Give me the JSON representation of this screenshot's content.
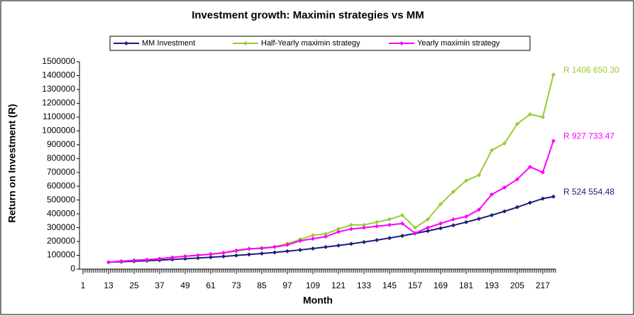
{
  "chart_data": {
    "type": "line",
    "title": "Investment growth: Maximin strategies vs MM",
    "xlabel": "Month",
    "ylabel": "Return on Investment (R)",
    "x": [
      13,
      19,
      25,
      31,
      37,
      43,
      49,
      55,
      61,
      67,
      73,
      79,
      85,
      91,
      97,
      103,
      109,
      115,
      121,
      127,
      133,
      139,
      145,
      151,
      157,
      163,
      169,
      175,
      181,
      187,
      193,
      199,
      205,
      211,
      217,
      222
    ],
    "series": [
      {
        "name": "MM Investment",
        "color": "#1a1f7a",
        "values": [
          50000,
          53000,
          57000,
          61000,
          65000,
          70000,
          75000,
          80000,
          86000,
          92000,
          99000,
          106000,
          113000,
          121000,
          130000,
          139000,
          149000,
          160000,
          171000,
          183000,
          196000,
          210000,
          225000,
          241000,
          258000,
          276000,
          296000,
          317000,
          340000,
          364000,
          390000,
          418000,
          448000,
          480000,
          510000,
          524554.48
        ]
      },
      {
        "name": "Half-Yearly maximin strategy",
        "color": "#99cc33",
        "values": [
          50000,
          57000,
          65000,
          68000,
          75000,
          85000,
          93000,
          100000,
          110000,
          118000,
          130000,
          145000,
          155000,
          162000,
          185000,
          215000,
          245000,
          255000,
          290000,
          320000,
          320000,
          340000,
          360000,
          390000,
          300000,
          360000,
          470000,
          560000,
          640000,
          680000,
          860000,
          910000,
          1050000,
          1120000,
          1100000,
          1406650.3
        ]
      },
      {
        "name": "Yearly maximin strategy",
        "color": "#ff00ff",
        "values": [
          50000,
          57000,
          63000,
          68000,
          75000,
          85000,
          93000,
          100000,
          108000,
          118000,
          135000,
          148000,
          150000,
          160000,
          175000,
          205000,
          220000,
          235000,
          270000,
          290000,
          300000,
          310000,
          320000,
          330000,
          260000,
          300000,
          330000,
          360000,
          380000,
          430000,
          540000,
          590000,
          650000,
          740000,
          700000,
          927733.47
        ]
      }
    ],
    "annotations": [
      {
        "text": "R 524 554.48"
      },
      {
        "text": "R 1406 650.30"
      },
      {
        "text": "R 927 733.47"
      }
    ],
    "xlim": [
      1,
      223
    ],
    "xticks": [
      1,
      13,
      25,
      37,
      49,
      61,
      73,
      85,
      97,
      109,
      121,
      133,
      145,
      157,
      169,
      181,
      193,
      205,
      217
    ],
    "ylim": [
      0,
      1500000
    ],
    "yticks": [
      0,
      100000,
      200000,
      300000,
      400000,
      500000,
      600000,
      700000,
      800000,
      900000,
      1000000,
      1100000,
      1200000,
      1300000,
      1400000,
      1500000
    ],
    "legend": "top",
    "grid": false
  }
}
